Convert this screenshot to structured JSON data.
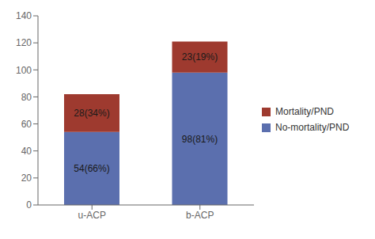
{
  "chart_data": {
    "type": "bar",
    "stacked": true,
    "categories": [
      "u-ACP",
      "b-ACP"
    ],
    "series": [
      {
        "name": "No-mortality/PND",
        "color": "#5b6fae",
        "values": [
          54,
          98
        ],
        "value_labels": [
          "54(66%)",
          "98(81%)"
        ]
      },
      {
        "name": "Mortality/PND",
        "color": "#9e3a2f",
        "values": [
          28,
          23
        ],
        "value_labels": [
          "28(34%)",
          "23(19%)"
        ]
      }
    ],
    "ylim": [
      0,
      140
    ],
    "yticks": [
      0,
      20,
      40,
      60,
      80,
      100,
      120,
      140
    ],
    "data_labels": true,
    "legend": "right",
    "grid": false
  }
}
